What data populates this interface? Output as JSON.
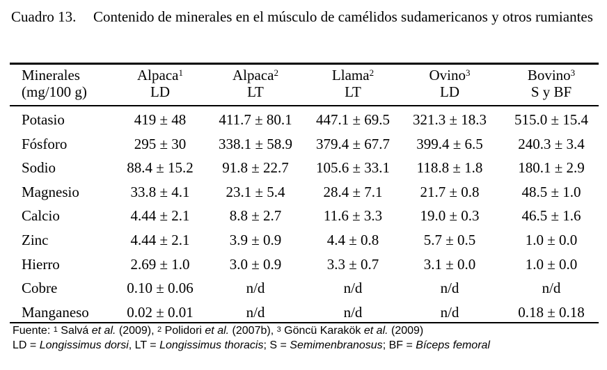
{
  "caption": {
    "label": "Cuadro 13.",
    "text": "Contenido de minerales en el músculo de camélidos sudamericanos y otros rumiantes"
  },
  "table": {
    "header_first": [
      "Minerales",
      "(mg/100 g)"
    ],
    "columns": [
      {
        "name": "Alpaca",
        "sup": "1",
        "sub": "LD"
      },
      {
        "name": "Alpaca",
        "sup": "2",
        "sub": "LT"
      },
      {
        "name": "Llama",
        "sup": "2",
        "sub": "LT"
      },
      {
        "name": "Ovino",
        "sup": "3",
        "sub": "LD"
      },
      {
        "name": "Bovino",
        "sup": "3",
        "sub": "S y BF"
      }
    ],
    "rows": [
      {
        "mineral": "Potasio",
        "values": [
          "419 ± 48",
          "411.7 ± 80.1",
          "447.1 ± 69.5",
          "321.3 ± 18.3",
          "515.0 ± 15.4"
        ]
      },
      {
        "mineral": "Fósforo",
        "values": [
          "295 ± 30",
          "338.1 ± 58.9",
          "379.4 ± 67.7",
          "399.4 ± 6.5",
          "240.3 ± 3.4"
        ]
      },
      {
        "mineral": "Sodio",
        "values": [
          "88.4 ± 15.2",
          "91.8 ± 22.7",
          "105.6 ± 33.1",
          "118.8 ± 1.8",
          "180.1 ± 2.9"
        ]
      },
      {
        "mineral": "Magnesio",
        "values": [
          "33.8 ± 4.1",
          "23.1 ± 5.4",
          "28.4 ± 7.1",
          "21.7 ± 0.8",
          "48.5 ± 1.0"
        ]
      },
      {
        "mineral": "Calcio",
        "values": [
          "4.44 ± 2.1",
          "8.8 ± 2.7",
          "11.6 ± 3.3",
          "19.0 ± 0.3",
          "46.5 ± 1.6"
        ]
      },
      {
        "mineral": "Zinc",
        "values": [
          "4.44 ± 2.1",
          "3.9 ± 0.9",
          "4.4 ± 0.8",
          "5.7 ± 0.5",
          "1.0 ± 0.0"
        ]
      },
      {
        "mineral": "Hierro",
        "values": [
          "2.69 ± 1.0",
          "3.0 ± 0.9",
          "3.3 ± 0.7",
          "3.1 ± 0.0",
          "1.0 ± 0.0"
        ]
      },
      {
        "mineral": "Cobre",
        "values": [
          "0.10 ± 0.06",
          "n/d",
          "n/d",
          "n/d",
          "n/d"
        ]
      },
      {
        "mineral": "Manganeso",
        "values": [
          "0.02 ± 0.01",
          "n/d",
          "n/d",
          "n/d",
          "0.18 ± 0.18"
        ]
      }
    ]
  },
  "footnote": {
    "line1": {
      "prefix": "Fuente: ",
      "sup1": "1",
      "ref1a": " Salvá ",
      "ref1b": "et al.",
      "ref1c": " (2009), ",
      "sup2": "2",
      "ref2a": " Polidori ",
      "ref2b": "et al.",
      "ref2c": " (2007b), ",
      "sup3": "3",
      "ref3a": " Göncü Karakök ",
      "ref3b": "et al.",
      "ref3c": " (2009)"
    },
    "line2": {
      "ld": "LD = ",
      "ld_name": "Longissimus dorsi",
      "lt": ", LT = ",
      "lt_name": "Longissimus thoracis",
      "s": "; S = ",
      "s_name": "Semimenbranosus",
      "bf": "; BF = ",
      "bf_name": "Bíceps femoral"
    }
  }
}
